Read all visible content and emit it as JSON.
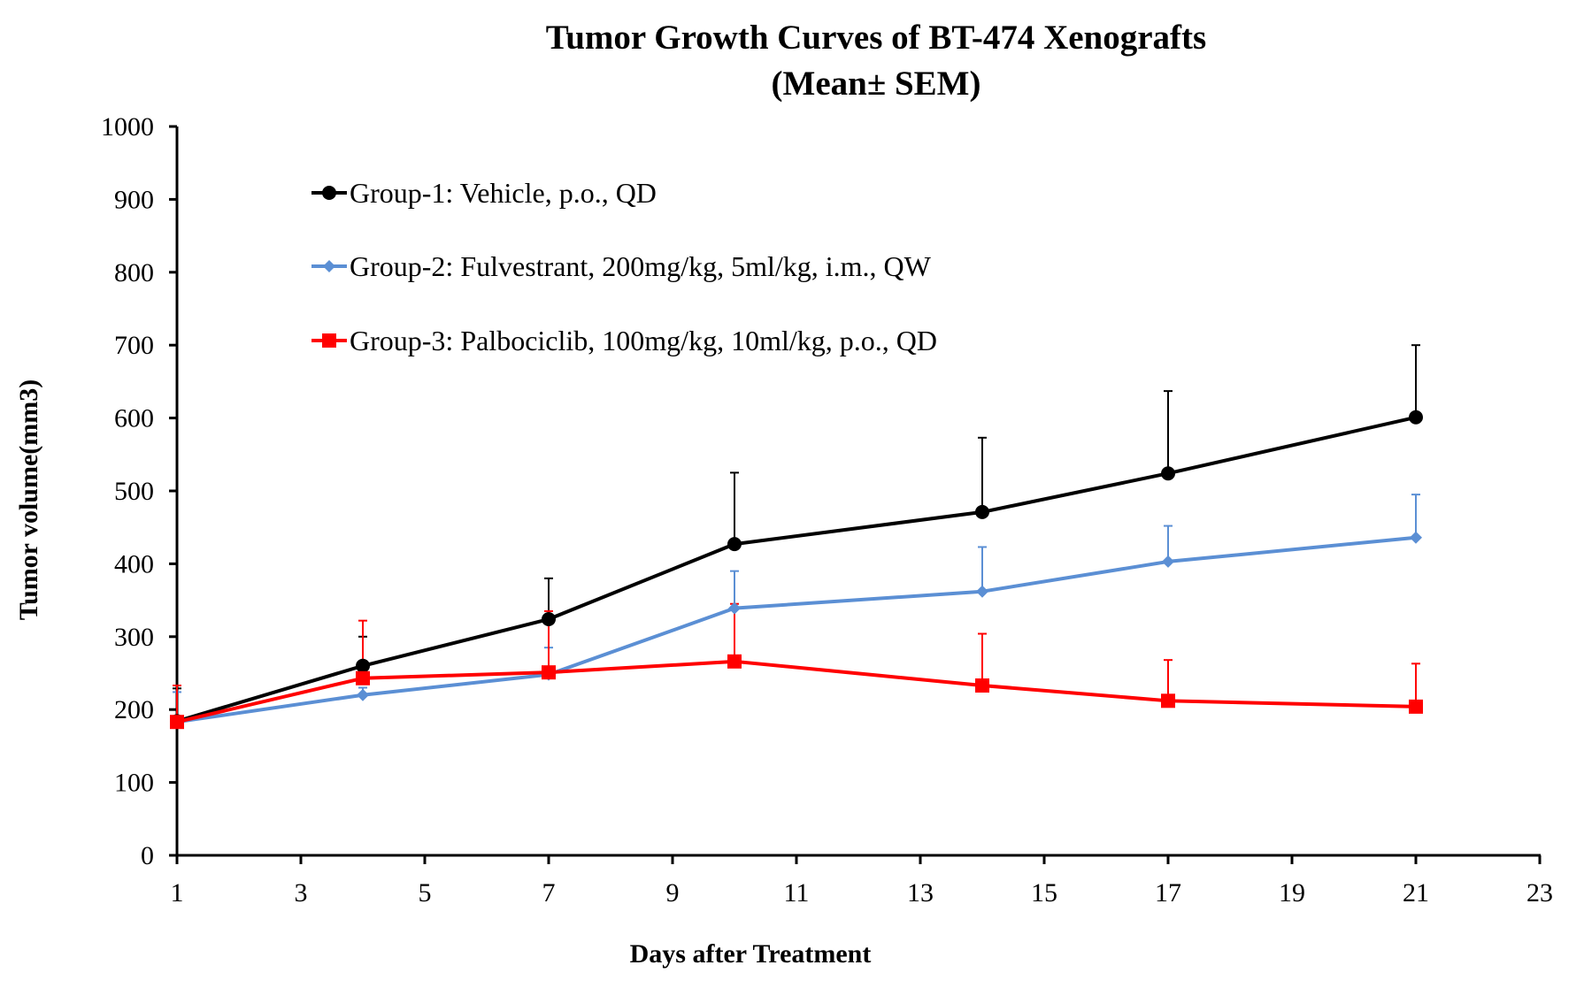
{
  "chart_data": {
    "type": "line",
    "title": "Tumor Growth Curves of BT-474 Xenografts",
    "subtitle": "(Mean± SEM)",
    "xlabel": "Days after Treatment",
    "ylabel": "Tumor volume(mm3)",
    "xlim": [
      1,
      23
    ],
    "ylim": [
      0,
      1000
    ],
    "xticks": [
      1,
      3,
      5,
      7,
      9,
      11,
      13,
      15,
      17,
      19,
      21,
      23
    ],
    "yticks": [
      0,
      100,
      200,
      300,
      400,
      500,
      600,
      700,
      800,
      900,
      1000
    ],
    "grid": false,
    "legend_position": "top-left",
    "x": [
      1,
      4,
      7,
      10,
      14,
      17,
      21
    ],
    "series": [
      {
        "name": "Group-1: Vehicle, p.o., QD",
        "color": "#000000",
        "marker": "circle",
        "values": [
          184,
          260,
          324,
          427,
          471,
          524,
          601
        ],
        "sem": [
          45,
          40,
          56,
          98,
          102,
          113,
          99
        ]
      },
      {
        "name": "Group-2: Fulvestrant, 200mg/kg, 5ml/kg, i.m., QW",
        "color": "#5b8fd4",
        "marker": "diamond",
        "values": [
          183,
          220,
          248,
          339,
          362,
          403,
          436
        ],
        "sem": [
          41,
          10,
          37,
          51,
          61,
          49,
          59
        ]
      },
      {
        "name": "Group-3: Palbociclib, 100mg/kg, 10ml/kg, p.o., QD",
        "color": "#ff0000",
        "marker": "square",
        "values": [
          183,
          243,
          251,
          266,
          233,
          212,
          204
        ],
        "sem": [
          50,
          79,
          84,
          79,
          71,
          56,
          59
        ]
      }
    ]
  }
}
